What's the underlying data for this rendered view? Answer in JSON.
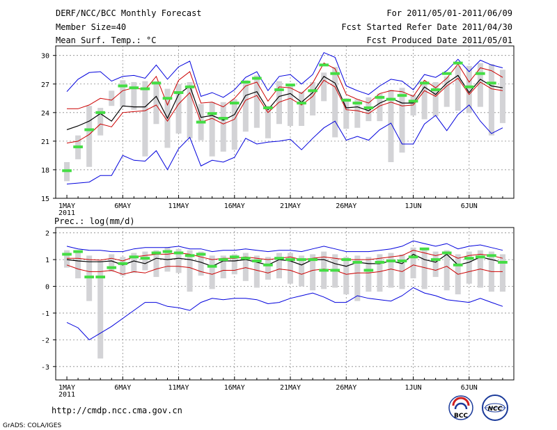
{
  "header": {
    "title": "DERF/NCC/BCC Monthly Forecast",
    "member_size": "Member Size=40",
    "variable": "Mean Surf. Temp.: °C",
    "period": "For 2011/05/01-2011/06/09",
    "start_date": "Fcst Started Refer Date 2011/04/30",
    "produced_date": "Fcst Produced Date 2011/05/01"
  },
  "footer": {
    "url": "http://cmdp.ncc.cma.gov.cn",
    "credit": "GrADS: COLA/IGES",
    "logo_bcc_text": "BCC",
    "logo_ncc_text": "NCC"
  },
  "colors": {
    "envelope": "#0000dd",
    "percentile": "#cc0000",
    "mean": "#000000",
    "bars": "#d3d3d6",
    "observed": "#44dd44",
    "grid": "#888888"
  },
  "chart_data": [
    {
      "type": "line",
      "title": "Mean Surf. Temp.: °C",
      "x_tick_labels": [
        "1MAY",
        "6MAY",
        "11MAY",
        "16MAY",
        "21MAY",
        "26MAY",
        "1JUN",
        "6JUN"
      ],
      "x_tick_days": [
        1,
        6,
        11,
        16,
        21,
        26,
        32,
        37
      ],
      "year_label": "2011",
      "xlim": [
        0,
        41
      ],
      "ylim": [
        15,
        31
      ],
      "y_ticks": [
        15,
        18,
        21,
        24,
        27,
        30
      ],
      "y_tick_labels": [
        "15",
        "18",
        "21",
        "24",
        "27",
        "30"
      ],
      "days": [
        1,
        2,
        3,
        4,
        5,
        6,
        7,
        8,
        9,
        10,
        11,
        12,
        13,
        14,
        15,
        16,
        17,
        18,
        19,
        20,
        21,
        22,
        23,
        24,
        25,
        26,
        27,
        28,
        29,
        30,
        31,
        32,
        33,
        34,
        35,
        36,
        37,
        38,
        39,
        40
      ],
      "series": [
        {
          "name": "max",
          "values": [
            26.2,
            27.5,
            28.2,
            28.3,
            27.3,
            27.8,
            27.9,
            27.6,
            29.0,
            27.5,
            28.8,
            29.4,
            25.7,
            26.1,
            25.6,
            26.4,
            27.7,
            28.3,
            26.3,
            27.8,
            28.0,
            27.0,
            28.0,
            30.3,
            29.8,
            26.8,
            26.3,
            25.9,
            26.8,
            27.5,
            27.3,
            26.4,
            28.0,
            27.7,
            28.4,
            29.6,
            28.3,
            29.5,
            29.0,
            28.7
          ]
        },
        {
          "name": "upper",
          "values": [
            24.4,
            24.4,
            24.8,
            25.5,
            25.3,
            26.3,
            26.6,
            26.4,
            27.8,
            24.8,
            27.4,
            28.3,
            25.0,
            25.1,
            24.6,
            25.5,
            26.8,
            27.2,
            25.2,
            26.7,
            26.6,
            26.0,
            27.1,
            29.2,
            28.6,
            25.9,
            25.4,
            25.0,
            26.0,
            26.3,
            26.2,
            25.7,
            27.4,
            26.6,
            27.6,
            29.1,
            27.2,
            28.7,
            28.4,
            27.7
          ]
        },
        {
          "name": "mean",
          "values": [
            22.2,
            22.6,
            23.1,
            23.9,
            23.1,
            24.7,
            24.6,
            24.6,
            25.7,
            23.4,
            25.9,
            26.8,
            23.5,
            23.7,
            23.2,
            23.8,
            25.8,
            26.2,
            24.3,
            25.7,
            26.0,
            25.1,
            26.1,
            27.8,
            27.1,
            24.5,
            24.6,
            24.2,
            25.0,
            25.5,
            25.0,
            25.0,
            26.7,
            25.9,
            27.1,
            27.9,
            26.1,
            27.5,
            26.8,
            26.6
          ]
        },
        {
          "name": "lower",
          "values": [
            20.8,
            21.0,
            21.7,
            22.8,
            22.5,
            24.0,
            24.1,
            24.2,
            24.8,
            23.1,
            24.9,
            26.1,
            23.0,
            23.4,
            22.8,
            23.3,
            25.3,
            25.8,
            24.0,
            25.1,
            25.5,
            24.8,
            25.7,
            27.4,
            26.7,
            24.3,
            24.2,
            23.9,
            24.7,
            25.1,
            24.7,
            24.8,
            26.3,
            25.7,
            26.8,
            27.6,
            25.9,
            27.2,
            26.5,
            26.3
          ]
        },
        {
          "name": "min",
          "values": [
            16.5,
            16.6,
            16.7,
            17.4,
            17.4,
            19.5,
            19.0,
            18.9,
            20.0,
            18.0,
            20.2,
            21.4,
            18.4,
            19.0,
            18.8,
            19.3,
            21.3,
            20.7,
            20.9,
            21.0,
            21.2,
            20.1,
            21.3,
            22.4,
            23.1,
            21.1,
            21.5,
            21.1,
            22.2,
            22.9,
            20.7,
            20.7,
            22.8,
            23.7,
            22.1,
            23.8,
            24.8,
            23.1,
            21.8,
            22.4
          ]
        },
        {
          "name": "observed",
          "values": [
            17.9,
            20.4,
            22.2,
            24.0,
            null,
            26.8,
            26.6,
            26.5,
            27.1,
            25.5,
            26.1,
            26.7,
            23.0,
            23.9,
            23.4,
            25.0,
            27.2,
            27.6,
            24.5,
            26.4,
            26.9,
            25.0,
            26.3,
            29.0,
            28.1,
            25.3,
            25.0,
            24.5,
            25.6,
            25.4,
            25.8,
            25.2,
            27.1,
            26.4,
            28.1,
            29.2,
            26.7,
            28.1,
            27.1,
            null
          ]
        },
        {
          "name": "bar_top",
          "values": [
            18.8,
            21.6,
            24.7,
            24.5,
            26.3,
            27.4,
            27.2,
            27.3,
            27.3,
            26.5,
            27.0,
            27.2,
            24.9,
            25.1,
            25.1,
            25.4,
            27.4,
            27.9,
            24.7,
            27.3,
            26.9,
            26.2,
            27.2,
            28.2,
            28.8,
            25.5,
            25.4,
            25.6,
            26.0,
            26.4,
            26.6,
            25.9,
            27.1,
            27.2,
            27.8,
            28.9,
            28.9,
            29.2,
            29.1,
            28.5
          ]
        },
        {
          "name": "bar_bottom",
          "values": [
            16.8,
            19.1,
            18.3,
            21.6,
            24.7,
            24.6,
            24.3,
            19.4,
            22.8,
            20.3,
            21.8,
            21.3,
            21.1,
            19.4,
            19.9,
            20.1,
            22.0,
            22.4,
            21.3,
            22.8,
            22.6,
            22.6,
            23.7,
            25.2,
            21.4,
            22.3,
            22.4,
            23.1,
            23.1,
            18.8,
            19.8,
            23.7,
            23.3,
            23.6,
            24.6,
            24.2,
            24.0,
            24.6,
            21.6,
            22.9
          ]
        }
      ]
    },
    {
      "type": "line",
      "title": "Prec.: log(mm/d)",
      "x_tick_labels": [
        "1MAY",
        "6MAY",
        "11MAY",
        "16MAY",
        "21MAY",
        "26MAY",
        "1JUN",
        "6JUN"
      ],
      "x_tick_days": [
        1,
        6,
        11,
        16,
        21,
        26,
        32,
        37
      ],
      "year_label": "2011",
      "xlim": [
        0,
        41
      ],
      "ylim": [
        -3.5,
        2.2
      ],
      "y_ticks": [
        -3,
        -2,
        -1,
        0,
        1,
        2
      ],
      "y_tick_labels": [
        "-3",
        "-2",
        "-1",
        "0",
        "1",
        "2"
      ],
      "days": [
        1,
        2,
        3,
        4,
        5,
        6,
        7,
        8,
        9,
        10,
        11,
        12,
        13,
        14,
        15,
        16,
        17,
        18,
        19,
        20,
        21,
        22,
        23,
        24,
        25,
        26,
        27,
        28,
        29,
        30,
        31,
        32,
        33,
        34,
        35,
        36,
        37,
        38,
        39,
        40
      ],
      "series": [
        {
          "name": "max",
          "values": [
            1.5,
            1.4,
            1.35,
            1.35,
            1.3,
            1.3,
            1.4,
            1.45,
            1.45,
            1.45,
            1.5,
            1.4,
            1.4,
            1.3,
            1.35,
            1.35,
            1.4,
            1.35,
            1.3,
            1.35,
            1.35,
            1.3,
            1.4,
            1.5,
            1.4,
            1.3,
            1.3,
            1.3,
            1.35,
            1.4,
            1.5,
            1.7,
            1.6,
            1.5,
            1.6,
            1.4,
            1.5,
            1.55,
            1.45,
            1.35
          ]
        },
        {
          "name": "upper",
          "values": [
            1.05,
            1.05,
            1.0,
            0.98,
            1.05,
            0.95,
            1.1,
            1.15,
            1.2,
            1.2,
            1.25,
            1.2,
            1.1,
            1.0,
            1.05,
            1.05,
            1.1,
            1.05,
            1.0,
            1.05,
            1.1,
            1.0,
            1.05,
            1.1,
            1.05,
            1.0,
            1.0,
            1.0,
            1.05,
            1.1,
            1.15,
            1.35,
            1.25,
            1.15,
            1.25,
            1.05,
            1.15,
            1.2,
            1.15,
            1.05
          ]
        },
        {
          "name": "mean",
          "values": [
            1.0,
            0.95,
            0.92,
            0.92,
            0.95,
            0.8,
            0.95,
            0.85,
            1.05,
            1.0,
            1.05,
            1.0,
            0.9,
            0.75,
            0.95,
            0.95,
            1.0,
            0.9,
            0.8,
            1.0,
            0.95,
            0.8,
            1.0,
            1.0,
            0.85,
            0.75,
            0.9,
            0.85,
            0.85,
            0.95,
            0.85,
            1.2,
            1.0,
            0.9,
            1.2,
            0.8,
            0.9,
            1.1,
            1.0,
            0.9
          ]
        },
        {
          "name": "lower",
          "values": [
            0.8,
            0.65,
            0.55,
            0.55,
            0.6,
            0.45,
            0.55,
            0.5,
            0.65,
            0.75,
            0.75,
            0.7,
            0.55,
            0.45,
            0.6,
            0.6,
            0.7,
            0.6,
            0.5,
            0.65,
            0.6,
            0.45,
            0.6,
            0.65,
            0.6,
            0.45,
            0.5,
            0.5,
            0.55,
            0.65,
            0.55,
            0.8,
            0.7,
            0.6,
            0.75,
            0.45,
            0.55,
            0.65,
            0.55,
            0.55
          ]
        },
        {
          "name": "min",
          "values": [
            -1.35,
            -1.55,
            -2.0,
            -1.75,
            -1.5,
            -1.2,
            -0.9,
            -0.6,
            -0.6,
            -0.75,
            -0.8,
            -0.9,
            -0.6,
            -0.45,
            -0.5,
            -0.45,
            -0.45,
            -0.5,
            -0.65,
            -0.6,
            -0.45,
            -0.35,
            -0.25,
            -0.4,
            -0.6,
            -0.6,
            -0.35,
            -0.45,
            -0.5,
            -0.55,
            -0.35,
            -0.05,
            -0.25,
            -0.35,
            -0.5,
            -0.55,
            -0.6,
            -0.45,
            -0.6,
            -0.75
          ]
        },
        {
          "name": "observed",
          "values": [
            1.2,
            1.3,
            0.35,
            0.35,
            0.7,
            0.85,
            1.1,
            1.05,
            1.25,
            1.3,
            1.25,
            1.15,
            1.2,
            0.75,
            1.0,
            1.1,
            1.05,
            0.95,
            0.8,
            1.05,
            1.0,
            1.0,
            1.0,
            0.6,
            0.6,
            1.0,
            0.9,
            0.6,
            0.9,
            0.95,
            0.95,
            1.1,
            1.4,
            1.0,
            1.25,
            0.8,
            1.05,
            1.1,
            1.15,
            0.9
          ]
        },
        {
          "name": "bar_top",
          "values": [
            1.35,
            1.35,
            1.15,
            0.95,
            1.2,
            1.1,
            1.25,
            1.3,
            1.35,
            1.45,
            1.4,
            1.35,
            1.3,
            1.15,
            1.15,
            1.2,
            1.25,
            1.15,
            1.1,
            1.25,
            1.25,
            1.15,
            1.2,
            1.3,
            1.2,
            1.1,
            1.15,
            1.1,
            1.2,
            1.25,
            1.2,
            1.45,
            1.35,
            1.3,
            1.35,
            1.2,
            1.3,
            1.35,
            1.3,
            1.2
          ]
        },
        {
          "name": "bar_bottom",
          "values": [
            0.7,
            0.3,
            -0.55,
            -2.7,
            0.55,
            0.4,
            0.5,
            0.6,
            0.35,
            0.55,
            0.5,
            -0.2,
            0.4,
            -0.1,
            0.3,
            0.45,
            0.2,
            -0.05,
            0.25,
            0.3,
            0.1,
            0.0,
            -0.15,
            -0.1,
            -0.05,
            -0.3,
            -0.55,
            -0.2,
            -0.2,
            -0.05,
            -0.1,
            0.3,
            -0.1,
            0.35,
            -0.15,
            -0.3,
            0.1,
            -0.05,
            -0.2,
            -0.2
          ]
        }
      ]
    }
  ]
}
